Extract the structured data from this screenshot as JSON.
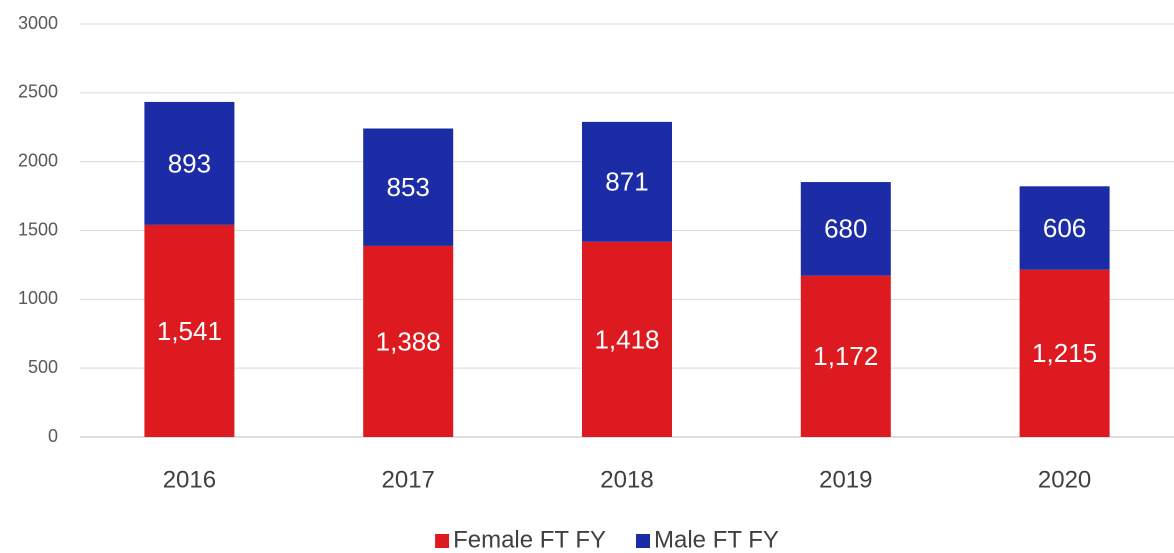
{
  "chart_data": {
    "type": "stacked_bar",
    "categories": [
      "2016",
      "2017",
      "2018",
      "2019",
      "2020"
    ],
    "series": [
      {
        "name": "Female FT FY",
        "color": "#dc1a1f",
        "values": [
          1541,
          1388,
          1418,
          1172,
          1215
        ],
        "value_labels": [
          "1,541",
          "1,388",
          "1,418",
          "1,172",
          "1,215"
        ]
      },
      {
        "name": "Male FT FY",
        "color": "#1c2ca6",
        "values": [
          893,
          853,
          871,
          680,
          606
        ]
      }
    ],
    "ylim": [
      0,
      3000
    ],
    "yticks": [
      0,
      500,
      1000,
      1500,
      2000,
      2500,
      3000
    ],
    "grid": true,
    "legend": "bottom"
  }
}
